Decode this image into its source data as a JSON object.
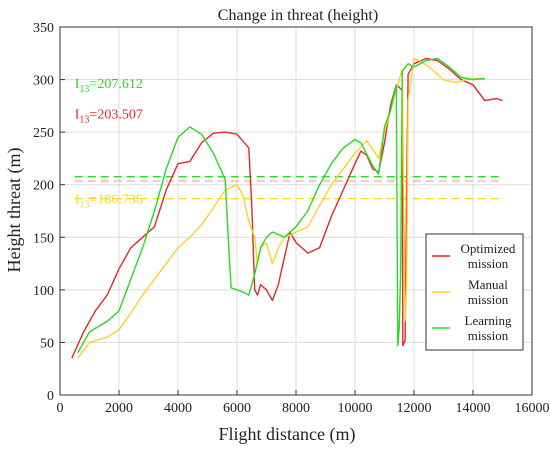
{
  "chart_data": {
    "type": "line",
    "title": "Change in threat (height)",
    "xlabel": "Flight distance (m)",
    "ylabel": "Height threat (m)",
    "xlim": [
      0,
      16000
    ],
    "ylim": [
      0,
      350
    ],
    "xticks": [
      0,
      2000,
      4000,
      6000,
      8000,
      10000,
      12000,
      14000,
      16000
    ],
    "yticks": [
      0,
      50,
      100,
      150,
      200,
      250,
      300,
      350
    ],
    "grid": true,
    "legend_position": "lower-right",
    "series": [
      {
        "name": "Optimized mission",
        "color": "#e8262b",
        "x": [
          400,
          800,
          1200,
          1600,
          2000,
          2400,
          2800,
          3200,
          3600,
          4000,
          4400,
          4800,
          5200,
          5600,
          6000,
          6400,
          6500,
          6600,
          6700,
          6800,
          7000,
          7200,
          7400,
          7600,
          7800,
          8000,
          8400,
          8800,
          9200,
          9600,
          10000,
          10200,
          10400,
          10600,
          10800,
          11000,
          11200,
          11400,
          11600,
          11620,
          11700,
          11750,
          11800,
          12000,
          12400,
          12800,
          13200,
          13600,
          14000,
          14400,
          14800,
          15000
        ],
        "y": [
          35,
          60,
          80,
          95,
          120,
          140,
          150,
          160,
          195,
          220,
          222,
          240,
          249,
          250,
          248,
          235,
          180,
          100,
          95,
          105,
          100,
          90,
          105,
          130,
          155,
          145,
          135,
          140,
          170,
          195,
          220,
          232,
          228,
          215,
          212,
          240,
          275,
          295,
          290,
          47,
          52,
          190,
          305,
          315,
          320,
          318,
          310,
          300,
          295,
          280,
          282,
          280
        ]
      },
      {
        "name": "Manual mission",
        "color": "#ffd12a",
        "x": [
          600,
          1000,
          1600,
          2000,
          2400,
          2800,
          3200,
          3600,
          4000,
          4400,
          4800,
          5200,
          5600,
          6000,
          6200,
          6400,
          6600,
          6700,
          6800,
          7000,
          7200,
          7400,
          7600,
          7800,
          8000,
          8400,
          8800,
          9200,
          9600,
          10000,
          10400,
          10800,
          11000,
          11200,
          11400,
          11600,
          11700,
          11750,
          11800,
          11900,
          12000,
          12200,
          12600,
          13000,
          13400,
          13800,
          14200,
          14400
        ],
        "y": [
          35,
          50,
          55,
          62,
          78,
          95,
          110,
          125,
          140,
          150,
          162,
          178,
          195,
          200,
          190,
          165,
          150,
          125,
          140,
          145,
          125,
          140,
          150,
          152,
          155,
          160,
          180,
          200,
          215,
          230,
          242,
          225,
          250,
          270,
          290,
          310,
          70,
          100,
          280,
          300,
          320,
          318,
          310,
          300,
          297,
          300,
          301,
          300
        ]
      },
      {
        "name": "Learning mission",
        "color": "#22dd22",
        "x": [
          600,
          1000,
          1600,
          2000,
          2400,
          2800,
          3200,
          3600,
          4000,
          4400,
          4800,
          5200,
          5600,
          5700,
          5800,
          6000,
          6200,
          6400,
          6600,
          6800,
          7000,
          7200,
          7600,
          8000,
          8400,
          8800,
          9200,
          9600,
          10000,
          10200,
          10600,
          10800,
          11000,
          11200,
          11400,
          11450,
          11500,
          11550,
          11600,
          11800,
          12000,
          12400,
          12800,
          13200,
          13600,
          14000,
          14400
        ],
        "y": [
          40,
          60,
          70,
          80,
          110,
          140,
          175,
          215,
          245,
          255,
          248,
          230,
          205,
          150,
          102,
          100,
          98,
          95,
          115,
          140,
          150,
          155,
          150,
          160,
          175,
          200,
          220,
          235,
          243,
          240,
          218,
          210,
          255,
          270,
          295,
          47,
          65,
          120,
          308,
          315,
          312,
          318,
          320,
          312,
          302,
          300,
          301
        ]
      }
    ],
    "reference_lines": [
      {
        "y": 207.612,
        "color": "#22dd22",
        "label": "I13=207.612"
      },
      {
        "y": 203.507,
        "color": "#f4a8a8",
        "label": "I13=203.507"
      },
      {
        "y": 186.736,
        "color": "#ffd12a",
        "label": "I13=186.736"
      }
    ]
  },
  "annotations": [
    {
      "text_main": "I",
      "text_sub": "13",
      "text_value": "=207.612",
      "color": "#22dd22",
      "anchor_x": 500,
      "anchor_y": 292
    },
    {
      "text_main": "I",
      "text_sub": "13",
      "text_value": "=203.507",
      "color": "#e8262b",
      "anchor_x": 500,
      "anchor_y": 263
    },
    {
      "text_main": "I",
      "text_sub": "13",
      "text_value": "=186.736",
      "color": "#ffd12a",
      "anchor_x": 500,
      "anchor_y": 182
    }
  ],
  "legend": [
    {
      "line1": "Optimized",
      "line2": "mission",
      "color": "#e8262b"
    },
    {
      "line1": "Manual",
      "line2": "mission",
      "color": "#ffd12a"
    },
    {
      "line1": "Learning",
      "line2": "mission",
      "color": "#22dd22"
    }
  ]
}
